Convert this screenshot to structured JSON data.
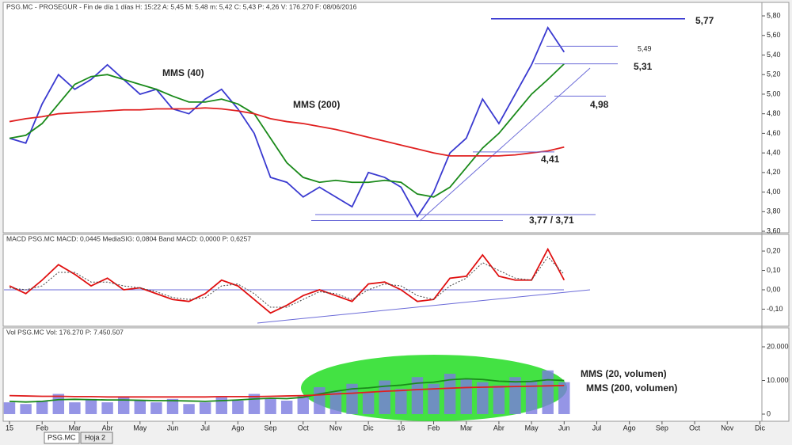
{
  "chart_data": [
    {
      "type": "line",
      "title": "PSG.MC - PROSEGUR - Fin de día 1 días H: 15:22 A: 5,45 M: 5,48 m: 5,42 C: 5,43 P: 4,26 V: 176.270 F: 08/06/2016",
      "x": [
        0,
        0.5,
        1,
        1.5,
        2,
        2.5,
        3,
        3.5,
        4,
        4.5,
        5,
        5.5,
        6,
        6.5,
        7,
        7.5,
        8,
        8.5,
        9,
        9.5,
        10,
        10.5,
        11,
        11.5,
        12,
        12.5,
        13,
        13.5,
        14,
        14.5,
        15,
        15.5,
        16,
        16.5,
        17
      ],
      "xlim": [
        -0.17,
        23.11
      ],
      "ylim": [
        3.568,
        5.865
      ],
      "yticks": [
        {
          "value": 3.6,
          "label": "3,60"
        },
        {
          "value": 3.8,
          "label": "3,80"
        },
        {
          "value": 4.0,
          "label": "4,00"
        },
        {
          "value": 4.2,
          "label": "4,20"
        },
        {
          "value": 4.4,
          "label": "4,40"
        },
        {
          "value": 4.6,
          "label": "4,60"
        },
        {
          "value": 4.8,
          "label": "4,80"
        },
        {
          "value": 5.0,
          "label": "5,00"
        },
        {
          "value": 5.2,
          "label": "5,20"
        },
        {
          "value": 5.4,
          "label": "5,40"
        },
        {
          "value": 5.6,
          "label": "5,60"
        },
        {
          "value": 5.8,
          "label": "5,80"
        }
      ],
      "series": [
        {
          "color": "#3a3ad0",
          "values": [
            4.55,
            4.5,
            4.9,
            5.2,
            5.05,
            5.15,
            5.3,
            5.15,
            5.0,
            5.05,
            4.85,
            4.8,
            4.95,
            5.05,
            4.85,
            4.6,
            4.15,
            4.1,
            3.95,
            4.05,
            3.95,
            3.85,
            4.2,
            4.15,
            4.05,
            3.75,
            4.0,
            4.4,
            4.55,
            4.95,
            4.7,
            5.0,
            5.3,
            5.68,
            5.43
          ]
        },
        {
          "name": "MMS (40)",
          "color": "#1a8a1a",
          "values": [
            4.55,
            4.58,
            4.7,
            4.9,
            5.1,
            5.18,
            5.2,
            5.15,
            5.1,
            5.05,
            4.98,
            4.92,
            4.92,
            4.95,
            4.9,
            4.8,
            4.55,
            4.3,
            4.15,
            4.1,
            4.12,
            4.1,
            4.1,
            4.12,
            4.1,
            3.98,
            3.95,
            4.05,
            4.25,
            4.45,
            4.6,
            4.8,
            5.0,
            5.15,
            5.31
          ]
        },
        {
          "name": "MMS (200)",
          "color": "#e02020",
          "values": [
            4.72,
            4.75,
            4.77,
            4.8,
            4.81,
            4.82,
            4.83,
            4.84,
            4.84,
            4.85,
            4.85,
            4.85,
            4.86,
            4.85,
            4.83,
            4.8,
            4.75,
            4.72,
            4.7,
            4.67,
            4.64,
            4.6,
            4.56,
            4.52,
            4.48,
            4.44,
            4.4,
            4.37,
            4.37,
            4.37,
            4.37,
            4.38,
            4.4,
            4.42,
            4.46
          ]
        }
      ],
      "levels": [
        {
          "values": [
            5.77
          ],
          "label": "5,77"
        },
        {
          "values": [
            5.49
          ],
          "label": "5,49"
        },
        {
          "values": [
            5.31
          ],
          "label": "5,31"
        },
        {
          "values": [
            4.98
          ],
          "label": "4,98"
        },
        {
          "values": [
            4.41
          ],
          "label": "4,41"
        },
        {
          "values": [
            3.77,
            3.71
          ],
          "label": "3,77 / 3,71"
        }
      ]
    },
    {
      "type": "line",
      "title": "MACD PSG.MC MACD: 0,0445 MediaSIG: 0,0804 Band MACD: 0,0000 P: 0,6257",
      "x": [
        0,
        0.5,
        1,
        1.5,
        2,
        2.5,
        3,
        3.5,
        4,
        4.5,
        5,
        5.5,
        6,
        6.5,
        7,
        7.5,
        8,
        8.5,
        9,
        9.5,
        10,
        10.5,
        11,
        11.5,
        12,
        12.5,
        13,
        13.5,
        14,
        14.5,
        15,
        15.5,
        16,
        16.5,
        17
      ],
      "xlim": [
        -0.17,
        23.11
      ],
      "ylim": [
        -0.18,
        0.278
      ],
      "yticks": [
        {
          "value": -0.1,
          "label": "-0,10"
        },
        {
          "value": 0,
          "label": "0,00"
        },
        {
          "value": 0.1,
          "label": "0,10"
        },
        {
          "value": 0.2,
          "label": "0,20"
        }
      ],
      "series": [
        {
          "color": "#e01010",
          "values": [
            0.02,
            -0.02,
            0.05,
            0.13,
            0.08,
            0.02,
            0.06,
            0.0,
            0.01,
            -0.02,
            -0.05,
            -0.06,
            -0.02,
            0.05,
            0.02,
            -0.05,
            -0.12,
            -0.08,
            -0.03,
            0.0,
            -0.03,
            -0.06,
            0.03,
            0.04,
            0.0,
            -0.06,
            -0.05,
            0.06,
            0.07,
            0.18,
            0.07,
            0.05,
            0.05,
            0.21,
            0.05
          ]
        },
        {
          "color": "#444444",
          "dashed": true,
          "values": [
            0.01,
            0.0,
            0.02,
            0.09,
            0.09,
            0.04,
            0.04,
            0.02,
            0.01,
            -0.01,
            -0.04,
            -0.05,
            -0.04,
            0.02,
            0.03,
            -0.02,
            -0.09,
            -0.09,
            -0.05,
            -0.01,
            -0.02,
            -0.05,
            0.0,
            0.03,
            0.02,
            -0.03,
            -0.05,
            0.02,
            0.06,
            0.14,
            0.1,
            0.06,
            0.05,
            0.17,
            0.08
          ]
        }
      ]
    },
    {
      "type": "bar",
      "title": "Vol PSG.MC Vol: 176.270 P: 7.450.507",
      "x": [
        0,
        0.5,
        1,
        1.5,
        2,
        2.5,
        3,
        3.5,
        4,
        4.5,
        5,
        5.5,
        6,
        6.5,
        7,
        7.5,
        8,
        8.5,
        9,
        9.5,
        10,
        10.5,
        11,
        11.5,
        12,
        12.5,
        13,
        13.5,
        14,
        14.5,
        15,
        15.5,
        16,
        16.5,
        17
      ],
      "xlim": [
        -0.17,
        23.11
      ],
      "ylim": [
        -1650,
        24940
      ],
      "yticks": [
        0,
        {
          "value": 10000,
          "label": "10.000"
        },
        {
          "value": 20000,
          "label": "20.000"
        }
      ],
      "xticks": [
        {
          "value": 0,
          "label": "15"
        },
        {
          "value": 1,
          "label": "Feb"
        },
        {
          "value": 2,
          "label": "Mar"
        },
        {
          "value": 3,
          "label": "Abr"
        },
        {
          "value": 4,
          "label": "May"
        },
        {
          "value": 5,
          "label": "Jun"
        },
        {
          "value": 6,
          "label": "Jul"
        },
        {
          "value": 7,
          "label": "Ago"
        },
        {
          "value": 8,
          "label": "Sep"
        },
        {
          "value": 9,
          "label": "Oct"
        },
        {
          "value": 10,
          "label": "Nov"
        },
        {
          "value": 11,
          "label": "Dic"
        },
        {
          "value": 12,
          "label": "16"
        },
        {
          "value": 13,
          "label": "Feb"
        },
        {
          "value": 14,
          "label": "Mar"
        },
        {
          "value": 15,
          "label": "Abr"
        },
        {
          "value": 16,
          "label": "May"
        },
        {
          "value": 17,
          "label": "Jun"
        },
        {
          "value": 18,
          "label": "Jul"
        },
        {
          "value": 19,
          "label": "Ago"
        },
        {
          "value": 20,
          "label": "Sep"
        },
        {
          "value": 21,
          "label": "Oct"
        },
        {
          "value": 22,
          "label": "Nov"
        },
        {
          "value": 23,
          "label": "Dic"
        }
      ],
      "color": "#7a7ae0",
      "values": [
        3500,
        3000,
        4000,
        6000,
        3500,
        4500,
        3500,
        5000,
        4000,
        3500,
        4500,
        3000,
        3500,
        5000,
        4000,
        6000,
        4500,
        4000,
        5500,
        8000,
        7000,
        9000,
        6500,
        10000,
        7500,
        11000,
        9000,
        12000,
        10500,
        9500,
        8500,
        11000,
        10000,
        13000,
        9500
      ],
      "series": [
        {
          "name": "MMS (20, volumen)",
          "color": "#1a8a1a",
          "values": [
            3800,
            3600,
            3800,
            4300,
            4400,
            4300,
            4200,
            4200,
            4100,
            4000,
            4000,
            3900,
            3800,
            4000,
            4200,
            4500,
            4700,
            4600,
            5000,
            6000,
            6800,
            7500,
            7800,
            8300,
            8600,
            9200,
            9500,
            10200,
            10500,
            10300,
            9800,
            9600,
            9700,
            10200,
            10000
          ]
        },
        {
          "name": "MMS (200, volumen)",
          "color": "#e02020",
          "values": [
            5500,
            5400,
            5300,
            5300,
            5200,
            5200,
            5100,
            5100,
            5100,
            5100,
            5100,
            5100,
            5100,
            5200,
            5200,
            5200,
            5300,
            5400,
            5500,
            5700,
            6000,
            6200,
            6500,
            6800,
            7000,
            7300,
            7500,
            7700,
            7900,
            8000,
            8100,
            8200,
            8300,
            8400,
            8500
          ]
        }
      ]
    }
  ],
  "tabs": [
    "PSG.MC",
    "Hoja 2"
  ]
}
